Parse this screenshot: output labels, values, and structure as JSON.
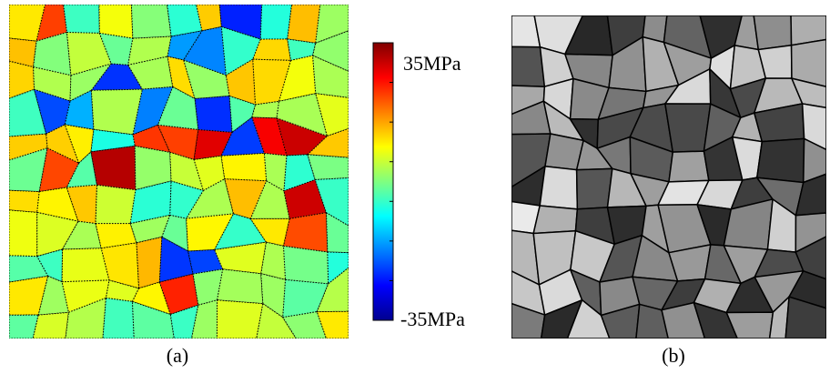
{
  "panels": [
    {
      "label": "(a)"
    },
    {
      "label": "(b)"
    }
  ],
  "colorbar": {
    "max_label": "35MPa",
    "min_label": "-35MPa"
  }
}
